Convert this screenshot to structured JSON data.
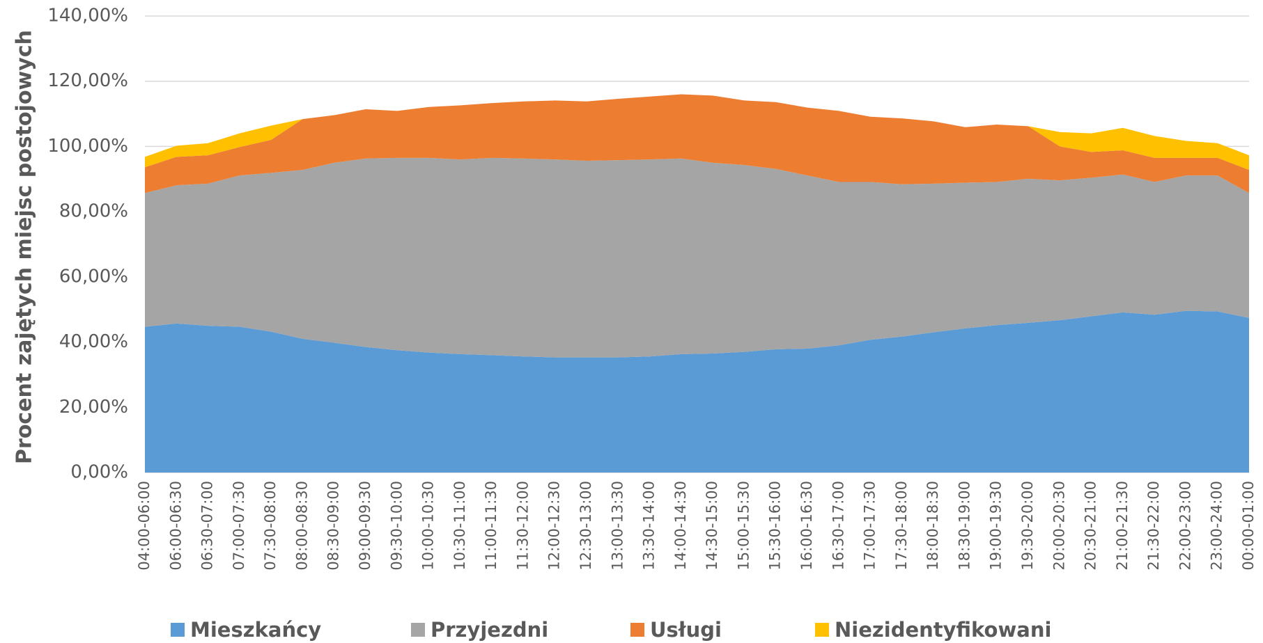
{
  "chart_data": {
    "type": "stacked_area",
    "y_label": "Procent zajętych miejsc postojowych",
    "categories": [
      "04:00-06:00",
      "06:00-06:30",
      "06:30-07:00",
      "07:00-07:30",
      "07:30-08:00",
      "08:00-08:30",
      "08:30-09:00",
      "09:00-09:30",
      "09:30-10:00",
      "10:00-10:30",
      "10:30-11:00",
      "11:00-11:30",
      "11:30-12:00",
      "12:00-12:30",
      "12:30-13:00",
      "13:00-13:30",
      "13:30-14:00",
      "14:00-14:30",
      "14:30-15:00",
      "15:00-15:30",
      "15:30-16:00",
      "16:00-16:30",
      "16:30-17:00",
      "17:00-17:30",
      "17:30-18:00",
      "18:00-18:30",
      "18:30-19:00",
      "19:00-19:30",
      "19:30-20:00",
      "20:00-20:30",
      "20:30-21:00",
      "21:00-21:30",
      "21:30-22:00",
      "22:00-23:00",
      "23:00-24:00",
      "00:00-01:00"
    ],
    "series": [
      {
        "name": "Mieszkańcy",
        "color": "#5b9bd5",
        "values": [
          44.7,
          45.7,
          45.0,
          44.7,
          43.2,
          41.0,
          39.8,
          38.5,
          37.5,
          36.8,
          36.3,
          36.0,
          35.6,
          35.3,
          35.3,
          35.3,
          35.6,
          36.3,
          36.5,
          37.0,
          37.8,
          38.0,
          39.0,
          40.7,
          41.7,
          43.0,
          44.2,
          45.2,
          45.9,
          46.7,
          47.9,
          49.1,
          48.4,
          49.6,
          49.4,
          47.4
        ]
      },
      {
        "name": "Przyjezdni",
        "color": "#a5a5a5",
        "values": [
          41.0,
          42.4,
          43.6,
          46.4,
          48.7,
          51.8,
          55.2,
          57.8,
          59.0,
          59.7,
          59.7,
          60.5,
          60.7,
          60.7,
          60.3,
          60.5,
          60.4,
          60.0,
          58.5,
          57.3,
          55.3,
          53.1,
          50.1,
          48.4,
          46.7,
          45.6,
          44.7,
          43.9,
          44.2,
          42.9,
          42.5,
          42.3,
          40.7,
          41.5,
          41.7,
          38.3
        ]
      },
      {
        "name": "Usługi",
        "color": "#ed7d31",
        "values": [
          7.9,
          8.7,
          8.7,
          8.7,
          10.1,
          15.6,
          14.6,
          15.1,
          14.4,
          15.6,
          16.6,
          16.8,
          17.5,
          18.1,
          18.2,
          18.8,
          19.3,
          19.7,
          20.6,
          19.8,
          20.5,
          20.8,
          21.8,
          20.0,
          20.2,
          19.1,
          17.0,
          17.6,
          16.1,
          10.4,
          7.9,
          7.4,
          7.4,
          5.4,
          5.4,
          7.1
        ]
      },
      {
        "name": "Niezidentyfikowani",
        "color": "#ffc000",
        "values": [
          3.2,
          3.4,
          3.7,
          4.2,
          4.4,
          0,
          0,
          0,
          0,
          0,
          0,
          0,
          0,
          0,
          0,
          0,
          0,
          0,
          0,
          0,
          0,
          0,
          0,
          0,
          0,
          0,
          0,
          0,
          0,
          4.4,
          5.7,
          6.9,
          6.7,
          5.2,
          4.5,
          4.5
        ]
      }
    ],
    "ylim": [
      0,
      140
    ],
    "yticks": [
      {
        "value": 0,
        "label": "0,00%"
      },
      {
        "value": 20,
        "label": "20,00%"
      },
      {
        "value": 40,
        "label": "40,00%"
      },
      {
        "value": 60,
        "label": "60,00%"
      },
      {
        "value": 80,
        "label": "80,00%"
      },
      {
        "value": 100,
        "label": "100,00%"
      },
      {
        "value": 120,
        "label": "120,00%"
      },
      {
        "value": 140,
        "label": "140,00%"
      }
    ],
    "grid": true
  }
}
